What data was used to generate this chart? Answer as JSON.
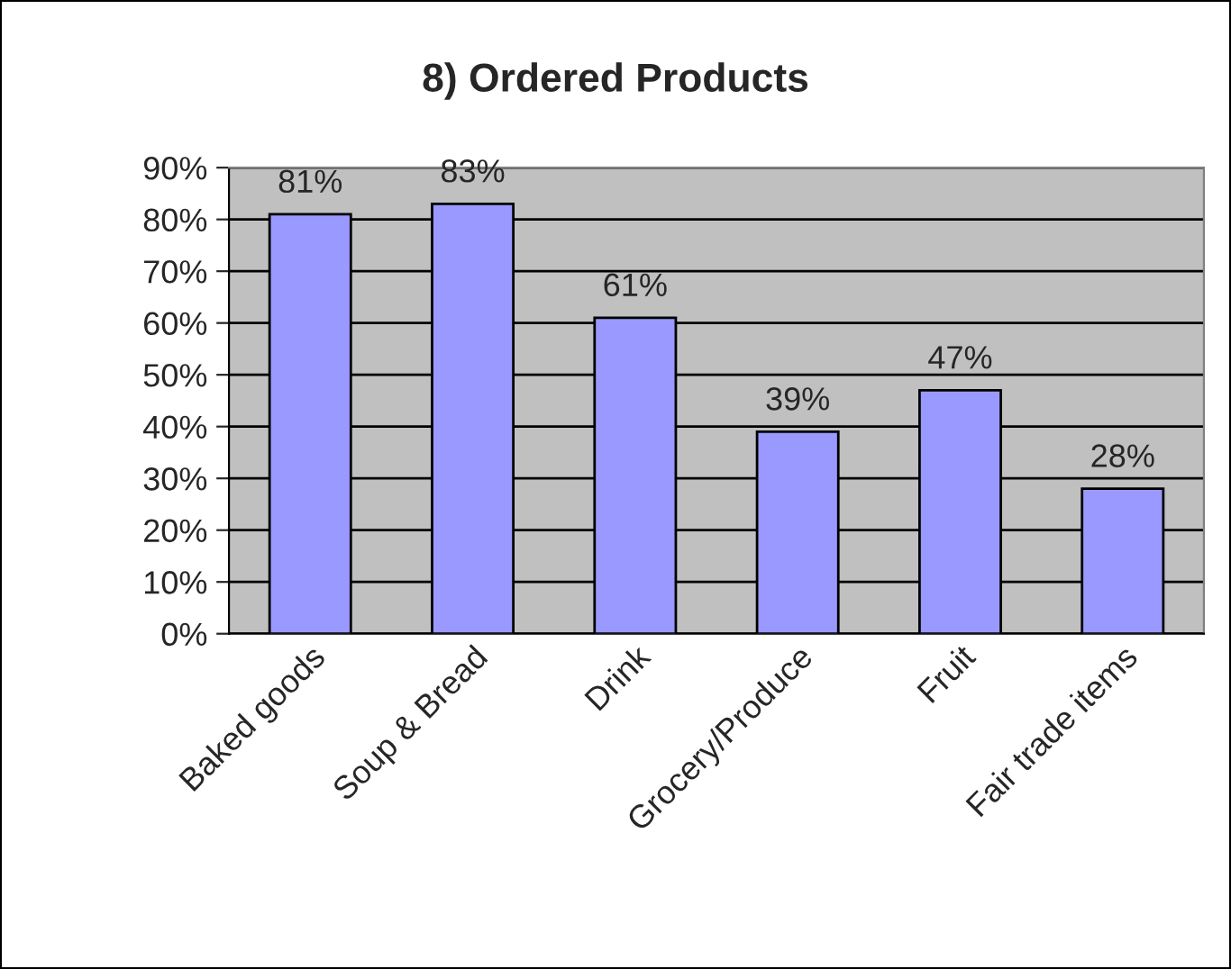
{
  "chart_data": {
    "type": "bar",
    "title": "8) Ordered Products",
    "categories": [
      "Baked goods",
      "Soup & Bread",
      "Drink",
      "Grocery/Produce",
      "Fruit",
      "Fair trade items"
    ],
    "values": [
      81,
      83,
      61,
      39,
      47,
      28
    ],
    "value_labels": [
      "81%",
      "83%",
      "61%",
      "39%",
      "47%",
      "28%"
    ],
    "color": "#9999ff",
    "ylim": [
      0,
      90
    ],
    "yticks": [
      {
        "value": 0,
        "label": "0%"
      },
      {
        "value": 10,
        "label": "10%"
      },
      {
        "value": 20,
        "label": "20%"
      },
      {
        "value": 30,
        "label": "30%"
      },
      {
        "value": 40,
        "label": "40%"
      },
      {
        "value": 50,
        "label": "50%"
      },
      {
        "value": 60,
        "label": "60%"
      },
      {
        "value": 70,
        "label": "70%"
      },
      {
        "value": 80,
        "label": "80%"
      },
      {
        "value": 90,
        "label": "90%"
      }
    ],
    "grid": "y",
    "legend": false
  }
}
